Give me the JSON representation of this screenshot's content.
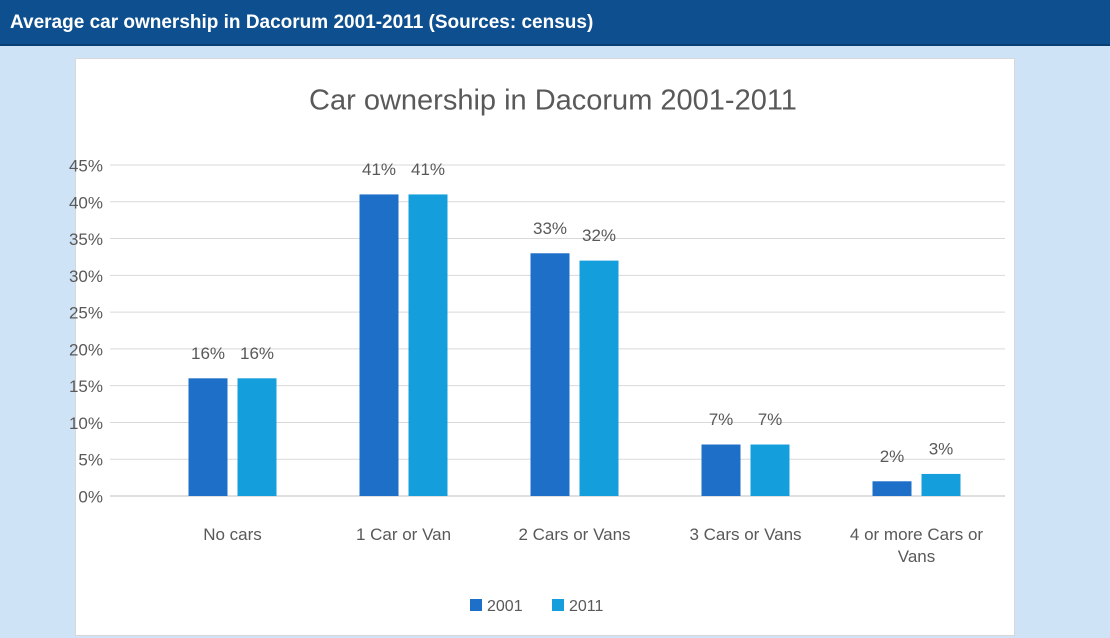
{
  "header": {
    "title": "Average car ownership in Dacorum 2001-2011 (Sources: census)"
  },
  "chart_data": {
    "type": "bar",
    "title": "Car ownership in Dacorum 2001-2011",
    "categories": [
      "No cars",
      "1 Car or Van",
      "2 Cars or Vans",
      "3 Cars or Vans",
      "4 or more Cars or Vans"
    ],
    "series": [
      {
        "name": "2001",
        "color": "#1e6fc8",
        "values": [
          16,
          41,
          33,
          7,
          2
        ],
        "value_labels": [
          "16%",
          "41%",
          "33%",
          "7%",
          "2%"
        ]
      },
      {
        "name": "2011",
        "color": "#149fdc",
        "values": [
          16,
          41,
          32,
          7,
          3
        ],
        "value_labels": [
          "16%",
          "41%",
          "32%",
          "7%",
          "3%"
        ]
      }
    ],
    "ylim": [
      0,
      45
    ],
    "yticks": [
      {
        "value": 0,
        "label": "0%"
      },
      {
        "value": 5,
        "label": "5%"
      },
      {
        "value": 10,
        "label": "10%"
      },
      {
        "value": 15,
        "label": "15%"
      },
      {
        "value": 20,
        "label": "20%"
      },
      {
        "value": 25,
        "label": "25%"
      },
      {
        "value": 30,
        "label": "30%"
      },
      {
        "value": 35,
        "label": "35%"
      },
      {
        "value": 40,
        "label": "40%"
      },
      {
        "value": 45,
        "label": "45%"
      }
    ],
    "grid": true,
    "legend": "bottom"
  }
}
